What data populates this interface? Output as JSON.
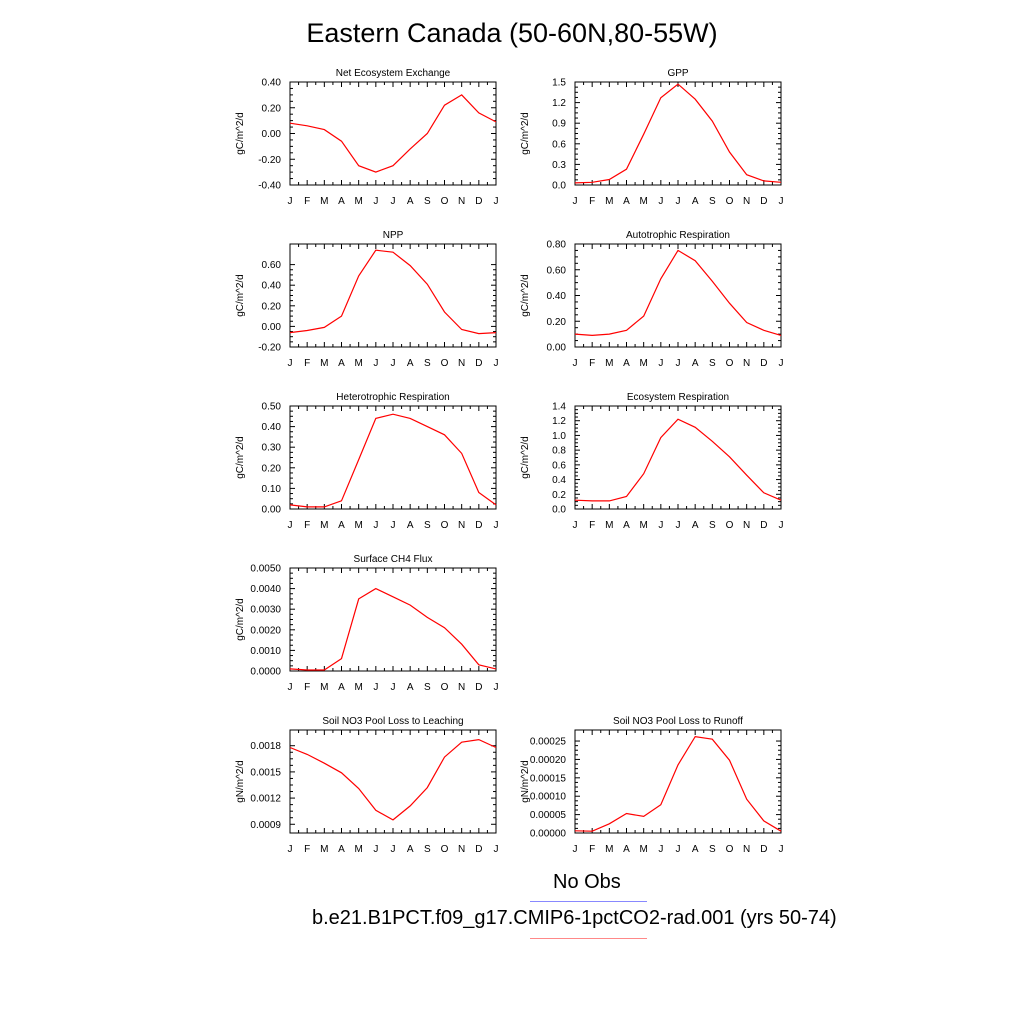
{
  "title": "Eastern Canada (50-60N,80-55W)",
  "line_color": "#ff0000",
  "legend": [
    {
      "label": "No Obs",
      "color": "#8888ff"
    },
    {
      "label": "b.e21.B1PCT.f09_g17.CMIP6-1pctCO2-rad.001 (yrs 50-74)",
      "color": "#ff8888"
    }
  ],
  "chart_data": [
    {
      "type": "line",
      "title": "Net Ecosystem Exchange",
      "ylabel": "gC/m^2/d",
      "categories": [
        "J",
        "F",
        "M",
        "A",
        "M",
        "J",
        "J",
        "A",
        "S",
        "O",
        "N",
        "D",
        "J"
      ],
      "ylim": [
        -0.4,
        0.4
      ],
      "yticks": [
        -0.4,
        -0.2,
        0.0,
        0.2,
        0.4
      ],
      "ydec": 2,
      "values": [
        0.08,
        0.06,
        0.03,
        -0.06,
        -0.25,
        -0.3,
        -0.25,
        -0.12,
        0.0,
        0.22,
        0.3,
        0.16,
        0.09
      ]
    },
    {
      "type": "line",
      "title": "GPP",
      "ylabel": "gC/m^2/d",
      "categories": [
        "J",
        "F",
        "M",
        "A",
        "M",
        "J",
        "J",
        "A",
        "S",
        "O",
        "N",
        "D",
        "J"
      ],
      "ylim": [
        0,
        1.5
      ],
      "yticks": [
        0.0,
        0.3,
        0.6,
        0.9,
        1.2,
        1.5
      ],
      "ydec": 1,
      "values": [
        0.03,
        0.04,
        0.08,
        0.23,
        0.74,
        1.27,
        1.47,
        1.25,
        0.93,
        0.48,
        0.15,
        0.06,
        0.04
      ]
    },
    {
      "type": "line",
      "title": "NPP",
      "ylabel": "gC/m^2/d",
      "categories": [
        "J",
        "F",
        "M",
        "A",
        "M",
        "J",
        "J",
        "A",
        "S",
        "O",
        "N",
        "D",
        "J"
      ],
      "ylim": [
        -0.2,
        0.8
      ],
      "yticks": [
        -0.2,
        0.0,
        0.2,
        0.4,
        0.6
      ],
      "ydec": 2,
      "values": [
        -0.06,
        -0.04,
        -0.01,
        0.1,
        0.49,
        0.74,
        0.72,
        0.59,
        0.41,
        0.14,
        -0.03,
        -0.07,
        -0.06
      ]
    },
    {
      "type": "line",
      "title": "Autotrophic Respiration",
      "ylabel": "gC/m^2/d",
      "categories": [
        "J",
        "F",
        "M",
        "A",
        "M",
        "J",
        "J",
        "A",
        "S",
        "O",
        "N",
        "D",
        "J"
      ],
      "ylim": [
        0,
        0.8
      ],
      "yticks": [
        0.0,
        0.2,
        0.4,
        0.6,
        0.8
      ],
      "ydec": 2,
      "values": [
        0.1,
        0.09,
        0.1,
        0.13,
        0.24,
        0.53,
        0.75,
        0.67,
        0.51,
        0.34,
        0.19,
        0.13,
        0.09
      ]
    },
    {
      "type": "line",
      "title": "Heterotrophic Respiration",
      "ylabel": "gC/m^2/d",
      "categories": [
        "J",
        "F",
        "M",
        "A",
        "M",
        "J",
        "J",
        "A",
        "S",
        "O",
        "N",
        "D",
        "J"
      ],
      "ylim": [
        0,
        0.5
      ],
      "yticks": [
        0.0,
        0.1,
        0.2,
        0.3,
        0.4,
        0.5
      ],
      "ydec": 2,
      "values": [
        0.02,
        0.01,
        0.01,
        0.04,
        0.24,
        0.44,
        0.46,
        0.44,
        0.4,
        0.36,
        0.27,
        0.08,
        0.02
      ]
    },
    {
      "type": "line",
      "title": "Ecosystem Respiration",
      "ylabel": "gC/m^2/d",
      "categories": [
        "J",
        "F",
        "M",
        "A",
        "M",
        "J",
        "J",
        "A",
        "S",
        "O",
        "N",
        "D",
        "J"
      ],
      "ylim": [
        0,
        1.4
      ],
      "yticks": [
        0.0,
        0.2,
        0.4,
        0.6,
        0.8,
        1.0,
        1.2,
        1.4
      ],
      "ydec": 1,
      "values": [
        0.12,
        0.11,
        0.11,
        0.17,
        0.48,
        0.97,
        1.22,
        1.11,
        0.92,
        0.71,
        0.46,
        0.22,
        0.12
      ]
    },
    {
      "type": "line",
      "title": "Surface CH4 Flux",
      "ylabel": "gC/m^2/d",
      "categories": [
        "J",
        "F",
        "M",
        "A",
        "M",
        "J",
        "J",
        "A",
        "S",
        "O",
        "N",
        "D",
        "J"
      ],
      "ylim": [
        0,
        0.005
      ],
      "yticks": [
        0.0,
        0.001,
        0.002,
        0.003,
        0.004,
        0.005
      ],
      "ydec": 4,
      "values": [
        0.0001,
        5e-05,
        5e-05,
        0.0006,
        0.0035,
        0.004,
        0.0036,
        0.0032,
        0.0026,
        0.0021,
        0.0013,
        0.0003,
        0.0001
      ]
    },
    {
      "type": "line",
      "title": "Soil NO3 Pool Loss to Leaching",
      "ylabel": "gN/m^2/d",
      "categories": [
        "J",
        "F",
        "M",
        "A",
        "M",
        "J",
        "J",
        "A",
        "S",
        "O",
        "N",
        "D",
        "J"
      ],
      "ylim": [
        0.0008,
        0.00198
      ],
      "yticks": [
        0.0009,
        0.0012,
        0.0015,
        0.0018
      ],
      "ydec": 4,
      "values": [
        0.00178,
        0.0017,
        0.0016,
        0.00149,
        0.00131,
        0.00106,
        0.00095,
        0.00111,
        0.00132,
        0.00167,
        0.00184,
        0.00187,
        0.00178
      ]
    },
    {
      "type": "line",
      "title": "Soil NO3 Pool Loss to Runoff",
      "ylabel": "gN/m^2/d",
      "categories": [
        "J",
        "F",
        "M",
        "A",
        "M",
        "J",
        "J",
        "A",
        "S",
        "O",
        "N",
        "D",
        "J"
      ],
      "ylim": [
        0,
        0.00028
      ],
      "yticks": [
        0.0,
        5e-05,
        0.0001,
        0.00015,
        0.0002,
        0.00025
      ],
      "ydec": 5,
      "values": [
        6e-06,
        5e-06,
        2.5e-05,
        5.3e-05,
        4.5e-05,
        7.7e-05,
        0.000185,
        0.000262,
        0.000255,
        0.000198,
        9.2e-05,
        3.3e-05,
        5e-06
      ]
    }
  ]
}
